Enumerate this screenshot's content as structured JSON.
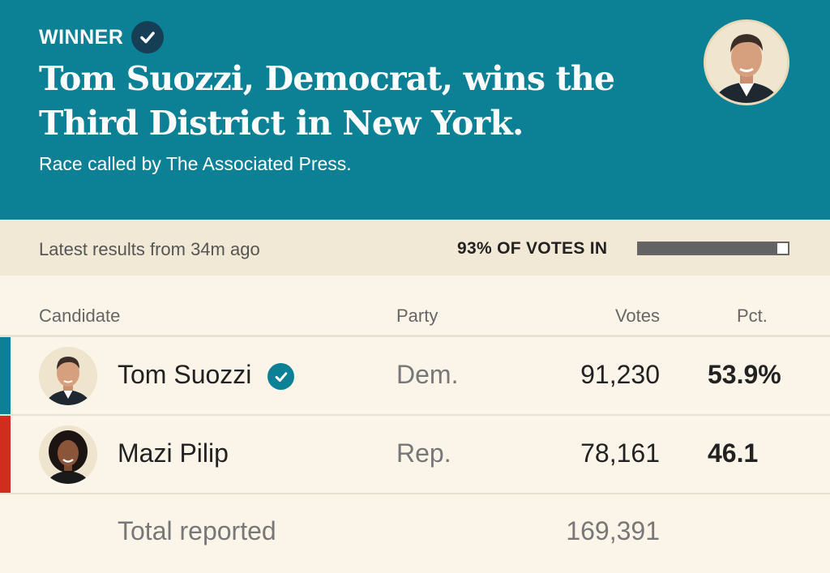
{
  "banner": {
    "winner_label": "WINNER",
    "headline": "Tom Suozzi, Democrat, wins the Third District in New York.",
    "subline": "Race called by The Associated Press.",
    "color": "#0c8095"
  },
  "status": {
    "latest": "Latest results from 34m ago",
    "votes_in": "93% OF VOTES IN",
    "votes_in_fraction": 0.93
  },
  "table": {
    "headers": {
      "candidate": "Candidate",
      "party": "Party",
      "votes": "Votes",
      "pct": "Pct."
    },
    "rows": [
      {
        "name": "Tom Suozzi",
        "winner": true,
        "party": "Dem.",
        "votes": "91,230",
        "pct": "53.9%",
        "party_color": "#0c8095"
      },
      {
        "name": "Mazi Pilip",
        "winner": false,
        "party": "Rep.",
        "votes": "78,161",
        "pct": "46.1",
        "party_color": "#d12d1e"
      }
    ],
    "total": {
      "label": "Total reported",
      "votes": "169,391"
    }
  }
}
